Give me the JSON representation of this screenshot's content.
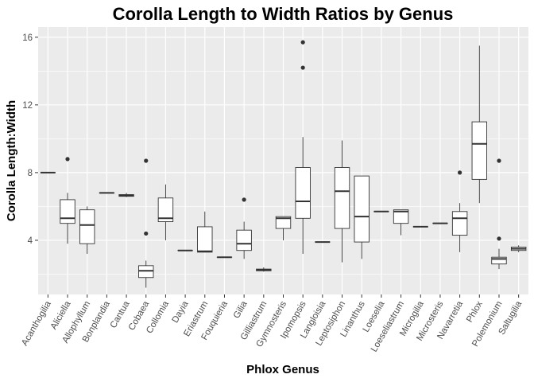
{
  "chart_data": {
    "type": "boxplot",
    "title": "Corolla Length to Width Ratios by Genus",
    "xlabel": "Phlox Genus",
    "ylabel": "Corolla Length:Width",
    "ylim": [
      0.8,
      16.6
    ],
    "yticks": [
      4,
      8,
      12,
      16
    ],
    "grid": true,
    "colors": {
      "panel": "#ebebeb",
      "grid": "#ffffff",
      "box_fill": "#ffffff",
      "stroke": "#333333",
      "text": "#4d4d4d"
    },
    "categories": [
      "Acanthogilia",
      "Aliciella",
      "Allophyllum",
      "Bonplandia",
      "Cantua",
      "Cobaea",
      "Collomia",
      "Dayia",
      "Eriastrum",
      "Fouquieria",
      "Gilia",
      "Gilliastrum",
      "Gymnosteris",
      "Ipomopsis",
      "Langloisia",
      "Leptosiphon",
      "Linanthus",
      "Loeselia",
      "Loeseliastrum",
      "Microgilia",
      "Microsteris",
      "Navarretia",
      "Phlox",
      "Polemonium",
      "Saltugilia"
    ],
    "boxes": [
      {
        "min": 8.0,
        "q1": 8.0,
        "median": 8.0,
        "q3": 8.0,
        "max": 8.0,
        "outliers": []
      },
      {
        "min": 3.8,
        "q1": 5.0,
        "median": 5.3,
        "q3": 6.4,
        "max": 6.8,
        "outliers": [
          8.8
        ]
      },
      {
        "min": 3.2,
        "q1": 3.8,
        "median": 4.9,
        "q3": 5.8,
        "max": 6.0,
        "outliers": []
      },
      {
        "min": 6.8,
        "q1": 6.8,
        "median": 6.8,
        "q3": 6.8,
        "max": 6.8,
        "outliers": []
      },
      {
        "min": 6.55,
        "q1": 6.6,
        "median": 6.65,
        "q3": 6.7,
        "max": 6.8,
        "outliers": []
      },
      {
        "min": 1.2,
        "q1": 1.8,
        "median": 2.2,
        "q3": 2.5,
        "max": 2.8,
        "outliers": [
          4.4,
          8.7
        ]
      },
      {
        "min": 4.0,
        "q1": 5.1,
        "median": 5.3,
        "q3": 6.5,
        "max": 7.3,
        "outliers": []
      },
      {
        "min": 3.4,
        "q1": 3.4,
        "median": 3.4,
        "q3": 3.4,
        "max": 3.4,
        "outliers": []
      },
      {
        "min": 3.3,
        "q1": 3.3,
        "median": 3.35,
        "q3": 4.8,
        "max": 5.7,
        "outliers": []
      },
      {
        "min": 3.0,
        "q1": 3.0,
        "median": 3.0,
        "q3": 3.0,
        "max": 3.0,
        "outliers": []
      },
      {
        "min": 2.9,
        "q1": 3.4,
        "median": 3.8,
        "q3": 4.6,
        "max": 5.1,
        "outliers": [
          6.4
        ]
      },
      {
        "min": 2.15,
        "q1": 2.2,
        "median": 2.25,
        "q3": 2.3,
        "max": 2.4,
        "outliers": []
      },
      {
        "min": 4.0,
        "q1": 4.7,
        "median": 5.3,
        "q3": 5.4,
        "max": 5.4,
        "outliers": []
      },
      {
        "min": 3.2,
        "q1": 5.3,
        "median": 6.3,
        "q3": 8.3,
        "max": 10.1,
        "outliers": [
          14.2,
          15.7
        ]
      },
      {
        "min": 3.9,
        "q1": 3.9,
        "median": 3.9,
        "q3": 3.9,
        "max": 3.9,
        "outliers": []
      },
      {
        "min": 2.7,
        "q1": 4.7,
        "median": 6.9,
        "q3": 8.3,
        "max": 9.9,
        "outliers": []
      },
      {
        "min": 2.9,
        "q1": 3.9,
        "median": 5.4,
        "q3": 7.8,
        "max": 7.8,
        "outliers": []
      },
      {
        "min": 5.7,
        "q1": 5.7,
        "median": 5.7,
        "q3": 5.7,
        "max": 5.7,
        "outliers": []
      },
      {
        "min": 4.3,
        "q1": 5.0,
        "median": 5.7,
        "q3": 5.8,
        "max": 5.8,
        "outliers": []
      },
      {
        "min": 4.8,
        "q1": 4.8,
        "median": 4.8,
        "q3": 4.8,
        "max": 4.8,
        "outliers": []
      },
      {
        "min": 5.0,
        "q1": 5.0,
        "median": 5.0,
        "q3": 5.0,
        "max": 5.0,
        "outliers": []
      },
      {
        "min": 3.3,
        "q1": 4.3,
        "median": 5.3,
        "q3": 5.7,
        "max": 6.2,
        "outliers": [
          8.0
        ]
      },
      {
        "min": 6.2,
        "q1": 7.6,
        "median": 9.7,
        "q3": 11.0,
        "max": 15.5,
        "outliers": []
      },
      {
        "min": 2.3,
        "q1": 2.6,
        "median": 2.9,
        "q3": 3.0,
        "max": 3.5,
        "outliers": [
          4.1,
          8.7
        ]
      },
      {
        "min": 3.3,
        "q1": 3.4,
        "median": 3.5,
        "q3": 3.6,
        "max": 3.7,
        "outliers": []
      }
    ]
  }
}
